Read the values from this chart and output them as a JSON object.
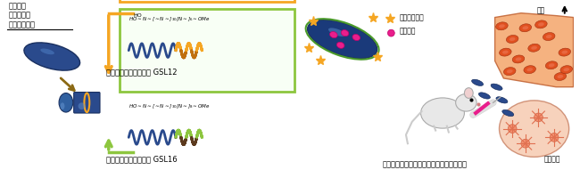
{
  "title": "",
  "bg_color": "#ffffff",
  "left_label": [
    "ロッド状",
    "（魚雷型）",
    "ナノカプセル"
  ],
  "box1_color": "#f5a623",
  "box2_color": "#8dc63f",
  "box1_label": "両親媒性ポリペプチド GSL12",
  "box2_label": "両親媒性ポリペプチド GSL16",
  "bottom_label": "ロッド形状が実現する素早い腫瘍組織集積",
  "legend1": "近赤外蛍光剤",
  "legend2": "抗がん剤",
  "label_blood": "血管",
  "label_tumor": "腫瘍組織",
  "capsule_color": "#2a4a8c",
  "capsule_highlight": "#4a7abf",
  "arrow_orange": "#f5a623",
  "arrow_green": "#8dc63f",
  "arrow_brown": "#8b6914",
  "wave_blue": "#2a4a8c",
  "wave_orange": "#f5a623",
  "wave_green": "#8dc63f",
  "wave_dark": "#5c3a1e",
  "star_color": "#f5a623",
  "dot_pink": "#e91e8c",
  "tissue_color": "#f4a56a",
  "blood_cell_color": "#e05020",
  "rod_color": "#2a4a8c"
}
